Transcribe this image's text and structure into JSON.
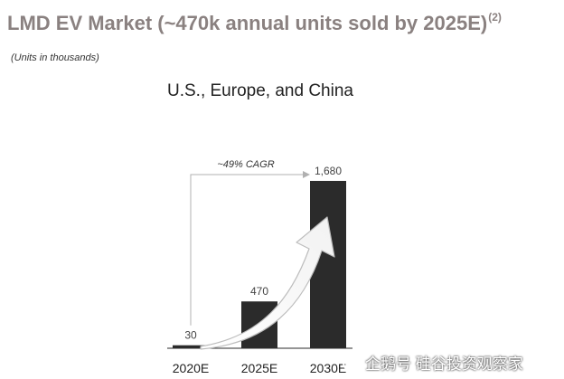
{
  "header": {
    "title": "LMD EV Market (~470k annual units sold by 2025E)",
    "title_superscript": "(2)",
    "units_note": "(Units in thousands)"
  },
  "chart_data": {
    "type": "bar",
    "title": "U.S., Europe, and China",
    "categories": [
      "2020E",
      "2025E",
      "2030E"
    ],
    "values": [
      30,
      470,
      1680
    ],
    "data_labels": [
      "30",
      "470",
      "1,680"
    ],
    "ylim": [
      0,
      1700
    ],
    "grid": false,
    "bar_color": "#2b2b2b",
    "annotation": {
      "text": "~49% CAGR",
      "from_category": "2020E",
      "to_category": "2030E"
    }
  },
  "watermark": {
    "icon": "wechat-logo-icon",
    "text": "企鹅号 硅谷投资观察家"
  }
}
